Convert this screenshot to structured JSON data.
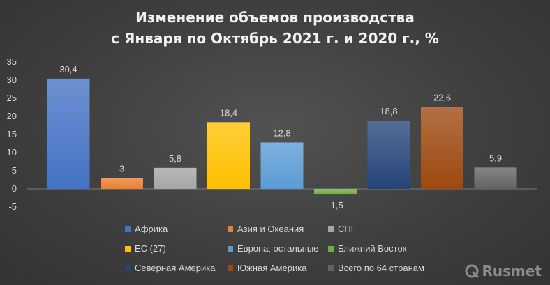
{
  "chart_data": {
    "type": "bar",
    "title_lines": [
      "Изменение объемов производства",
      "с Января по Октябрь 2021 г. и 2020 г., %"
    ],
    "categories": [
      "Африка",
      "Азия и Океания",
      "СНГ",
      "ЕС (27)",
      "Европа, остальные",
      "Ближний Восток",
      "Северная Америка",
      "Южная Америка",
      "Всего по 64 странам"
    ],
    "values": [
      30.4,
      3,
      5.8,
      18.4,
      12.8,
      -1.5,
      18.8,
      22.6,
      5.9
    ],
    "value_labels": [
      "30,4",
      "3",
      "5,8",
      "18,4",
      "12,8",
      "-1,5",
      "18,8",
      "22,6",
      "5,9"
    ],
    "colors": [
      "#4472c4",
      "#ed7d31",
      "#a5a5a5",
      "#ffc000",
      "#5b9bd5",
      "#70ad47",
      "#264478",
      "#9e480e",
      "#636363"
    ],
    "y_ticks": [
      "35",
      "30",
      "25",
      "20",
      "15",
      "10",
      "5",
      "0",
      "-5"
    ],
    "ylim": [
      -5,
      35
    ],
    "grid": false,
    "legend_position": "bottom"
  },
  "watermark": {
    "text": "Rusmet",
    "icon": "rusmet-logo-icon"
  }
}
